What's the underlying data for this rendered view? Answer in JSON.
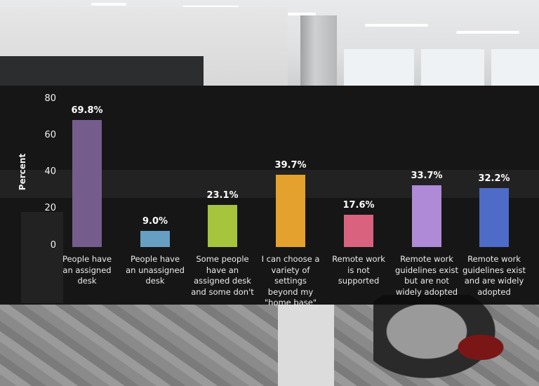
{
  "chart_data": {
    "type": "bar",
    "title": "",
    "xlabel": "",
    "ylabel": "Percent",
    "ylim": [
      0,
      80
    ],
    "yticks": [
      0,
      20,
      40,
      60,
      80
    ],
    "grid": false,
    "legend": null,
    "categories": [
      "People have\nan assigned\ndesk",
      "People have\nan unassigned\ndesk",
      "Some people\nhave an\nassigned desk\nand some don't",
      "I can choose a\nvariety of settings\nbeyond my\n\"home base\"",
      "Remote work\nis not\nsupported",
      "Remote work\nguidelines exist\nbut are not\nwidely adopted",
      "Remote work\nguidelines exist\nand are widely\nadopted"
    ],
    "values": [
      69.8,
      9.0,
      23.1,
      39.7,
      17.6,
      33.7,
      32.2
    ],
    "value_labels": [
      "69.8%",
      "9.0%",
      "23.1%",
      "39.7%",
      "17.6%",
      "33.7%",
      "32.2%"
    ],
    "colors": [
      "#745d8c",
      "#679fc2",
      "#a6c43c",
      "#e4a12e",
      "#d9637f",
      "#af8ad6",
      "#4e6bc8"
    ]
  },
  "axis": {
    "ylabel": "Percent",
    "ticks": [
      "80",
      "60",
      "40",
      "20",
      "0"
    ]
  }
}
